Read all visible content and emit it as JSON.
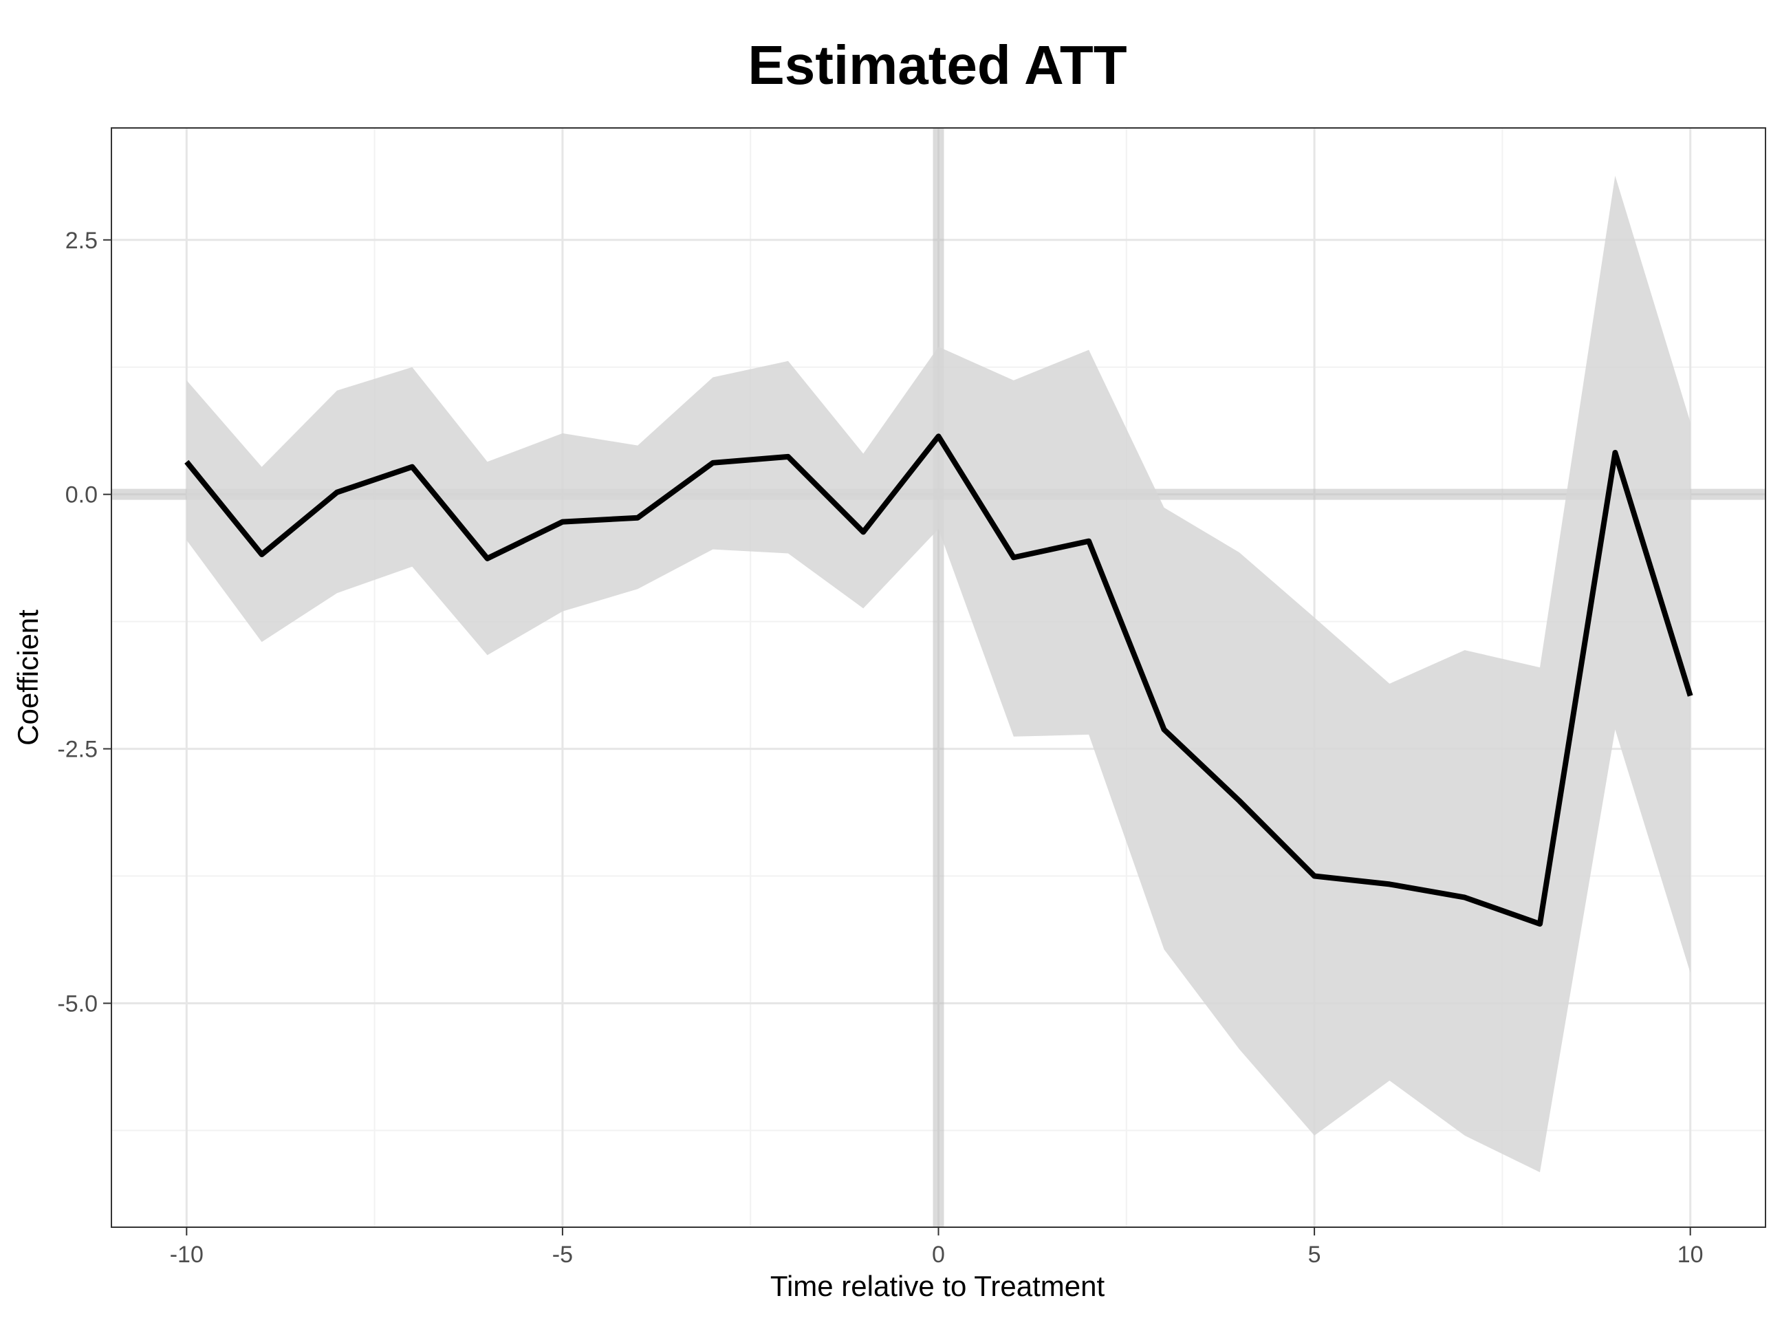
{
  "chart_data": {
    "type": "line",
    "title": "Estimated ATT",
    "xlabel": "Time relative to Treatment",
    "ylabel": "Coefficient",
    "xlim": [
      -11,
      11
    ],
    "ylim": [
      -7.2,
      3.6
    ],
    "x_ticks": [
      -10,
      -5,
      0,
      5,
      10
    ],
    "x_tick_labels": [
      "-10",
      "-5",
      "0",
      "5",
      "10"
    ],
    "y_ticks": [
      2.5,
      0.0,
      -2.5,
      -5.0
    ],
    "y_tick_labels": [
      "2.5",
      "0.0",
      "-2.5",
      "-5.0"
    ],
    "grid": true,
    "reference_lines": {
      "x": 0,
      "y": 0
    },
    "colors": {
      "line": "#000000",
      "band": "#d6d6d6",
      "reference": "#bdbdbd",
      "grid_major": "#e6e6e6",
      "grid_minor": "#f2f2f2",
      "panel_border": "#333333"
    },
    "series": [
      {
        "x": [
          -10,
          -9,
          -8,
          -7,
          -6,
          -5,
          -4,
          -3,
          -2,
          -1,
          0,
          1,
          2,
          3,
          4,
          5,
          6,
          7,
          8,
          9,
          10
        ],
        "values": [
          0.32,
          -0.59,
          0.02,
          0.27,
          -0.63,
          -0.27,
          -0.23,
          0.31,
          0.37,
          -0.37,
          0.57,
          -0.62,
          -0.46,
          -2.31,
          -3.01,
          -3.75,
          -3.83,
          -3.96,
          -4.22,
          0.41,
          -1.98
        ],
        "lower": [
          -0.45,
          -1.45,
          -0.97,
          -0.71,
          -1.58,
          -1.15,
          -0.93,
          -0.54,
          -0.58,
          -1.12,
          -0.34,
          -2.38,
          -2.36,
          -4.47,
          -5.45,
          -6.3,
          -5.76,
          -6.3,
          -6.66,
          -2.31,
          -4.7
        ],
        "upper": [
          1.12,
          0.27,
          1.02,
          1.25,
          0.32,
          0.6,
          0.48,
          1.15,
          1.31,
          0.4,
          1.45,
          1.12,
          1.42,
          -0.13,
          -0.57,
          -1.21,
          -1.86,
          -1.53,
          -1.7,
          3.13,
          0.71
        ]
      }
    ]
  }
}
